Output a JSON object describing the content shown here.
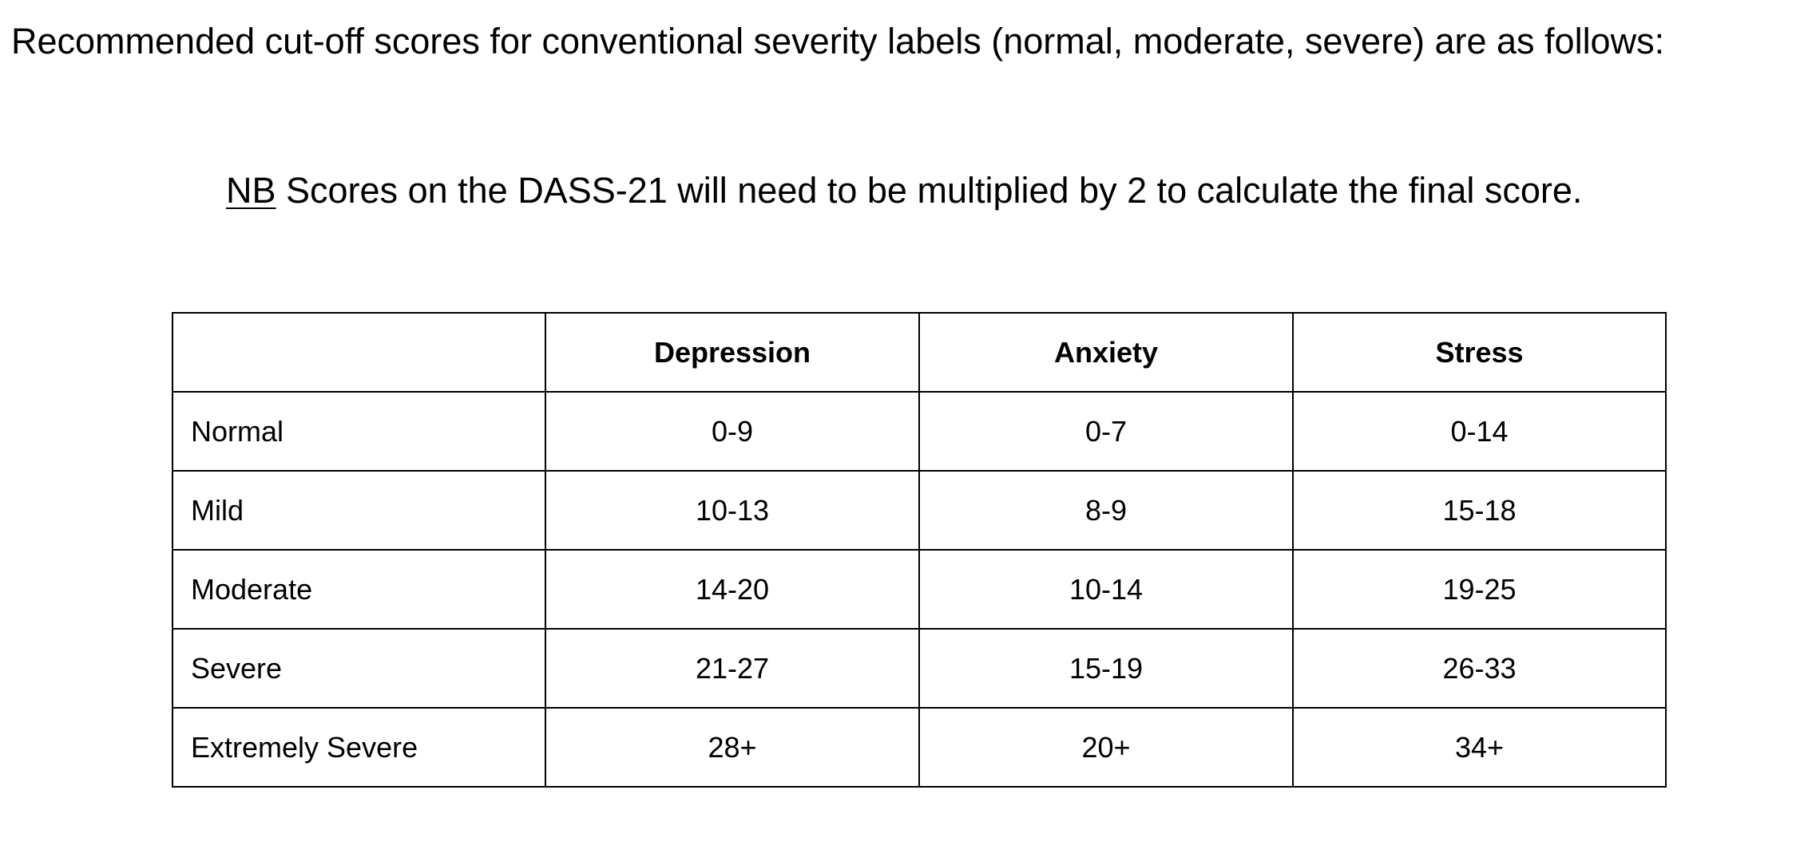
{
  "intro_text": "Recommended cut-off scores for conventional severity labels (normal, moderate, severe) are as follows:",
  "note": {
    "nb_label": "NB",
    "text": " Scores on the DASS-21 will need to be multiplied by 2 to calculate the final score."
  },
  "table": {
    "headers": [
      "",
      "Depression",
      "Anxiety",
      "Stress"
    ],
    "rows": [
      {
        "label": "Normal",
        "depression": "0-9",
        "anxiety": "0-7",
        "stress": "0-14"
      },
      {
        "label": "Mild",
        "depression": "10-13",
        "anxiety": "8-9",
        "stress": "15-18"
      },
      {
        "label": "Moderate",
        "depression": "14-20",
        "anxiety": "10-14",
        "stress": "19-25"
      },
      {
        "label": "Severe",
        "depression": "21-27",
        "anxiety": "15-19",
        "stress": "26-33"
      },
      {
        "label": "Extremely Severe",
        "depression": "28+",
        "anxiety": "20+",
        "stress": "34+"
      }
    ]
  }
}
